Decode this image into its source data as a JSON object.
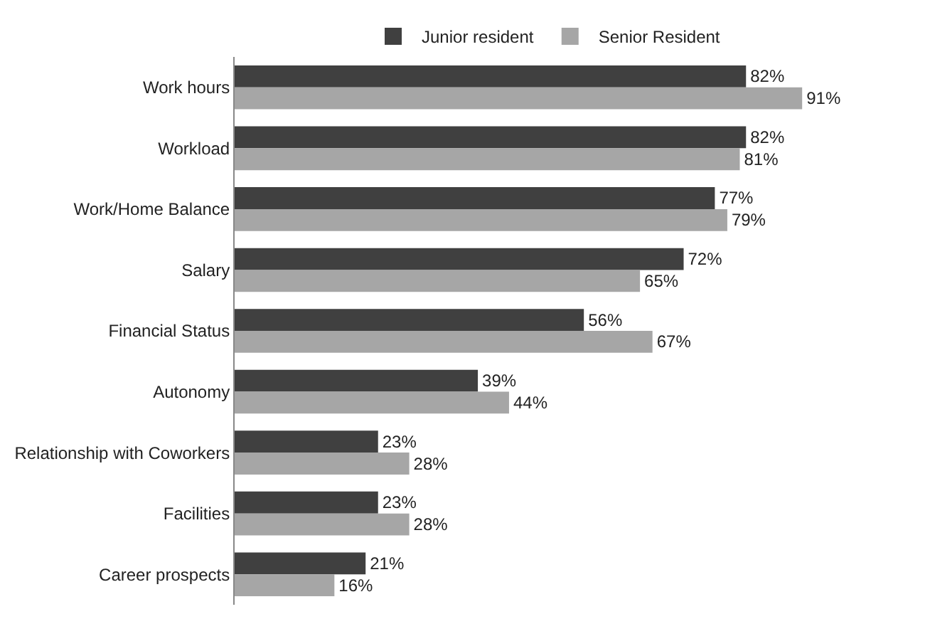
{
  "chart_data": {
    "type": "bar",
    "orientation": "horizontal",
    "legend": "top",
    "categories": [
      "Work hours",
      "Workload",
      "Work/Home Balance",
      "Salary",
      "Financial Status",
      "Autonomy",
      "Relationship with Coworkers",
      "Facilities",
      "Career prospects"
    ],
    "series": [
      {
        "name": "Junior resident",
        "color": "#404040",
        "values": [
          82,
          82,
          77,
          72,
          56,
          39,
          23,
          23,
          21
        ],
        "value_labels": [
          "82%",
          "82%",
          "77%",
          "72%",
          "56%",
          "39%",
          "23%",
          "23%",
          "21%"
        ]
      },
      {
        "name": "Senior Resident",
        "color": "#a6a6a6",
        "values": [
          91,
          81,
          79,
          65,
          67,
          44,
          28,
          28,
          16
        ],
        "value_labels": [
          "91%",
          "81%",
          "79%",
          "65%",
          "67%",
          "44%",
          "28%",
          "28%",
          "16%"
        ]
      }
    ]
  }
}
